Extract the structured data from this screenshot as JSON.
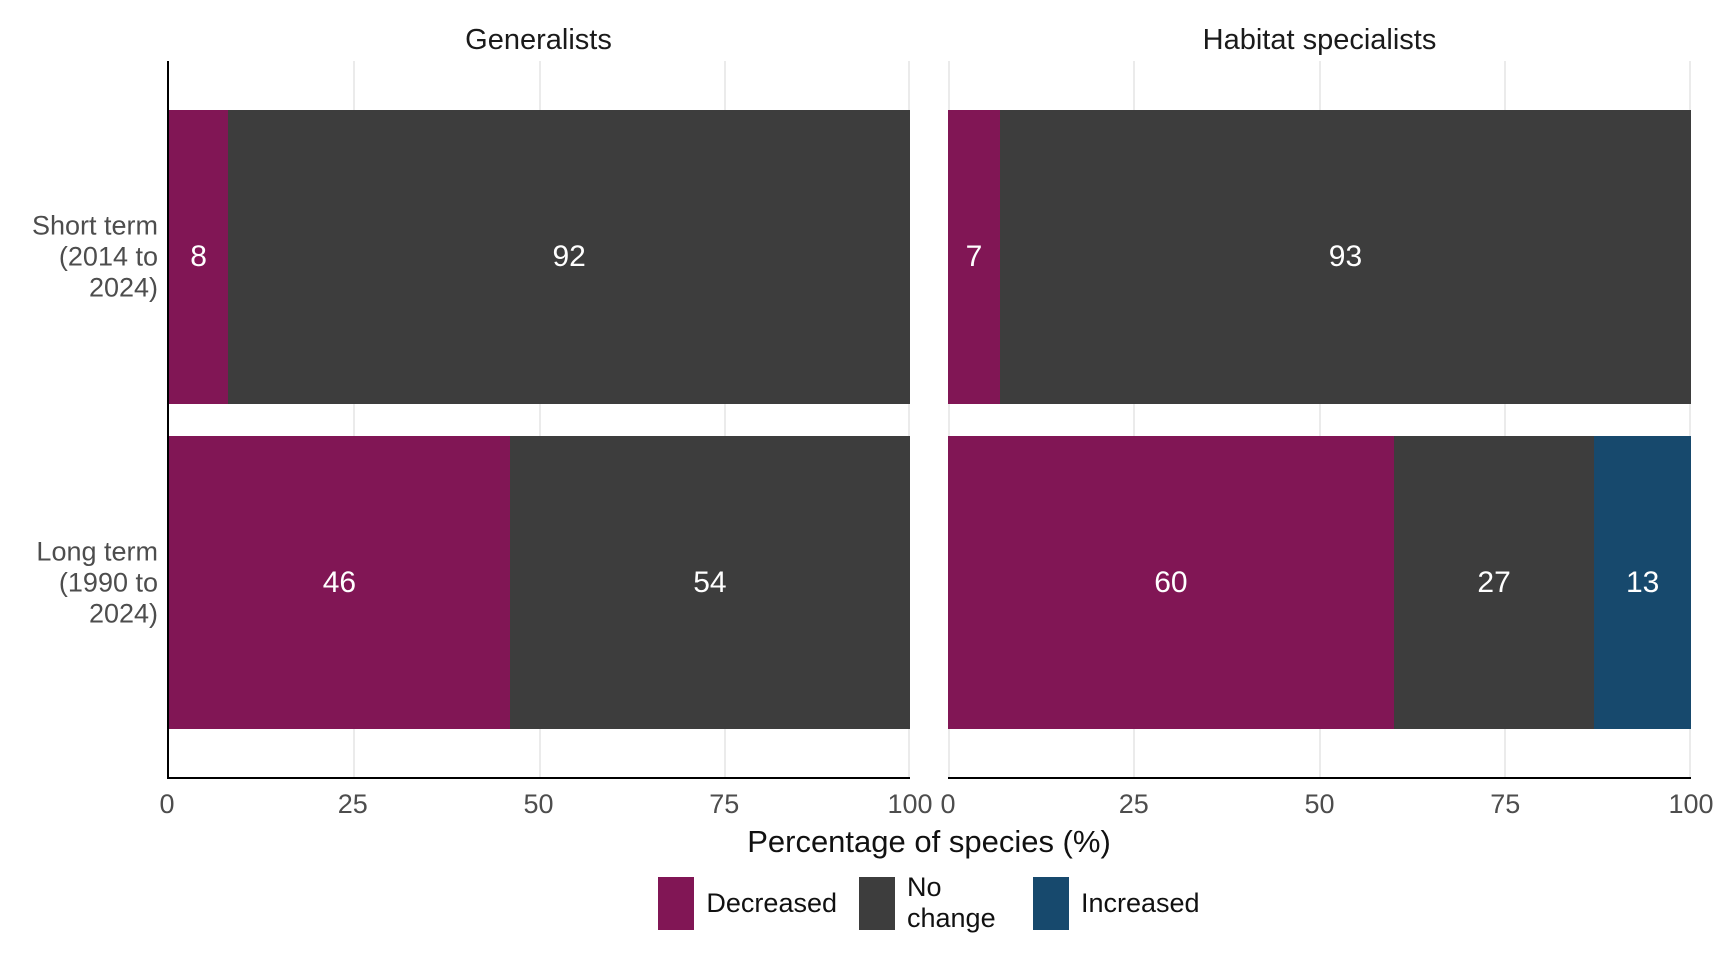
{
  "figure": {
    "background": "#ffffff"
  },
  "y_axis": {
    "categories": [
      {
        "name": "Short term (2014 to 2024)",
        "lines": [
          "Short term",
          "(2014 to",
          "2024)"
        ]
      },
      {
        "name": "Long term (1990 to 2024)",
        "lines": [
          "Long term",
          "(1990 to",
          "2024)"
        ]
      }
    ]
  },
  "chart_data": {
    "type": "bar",
    "orientation": "horizontal",
    "stacked": true,
    "unit": "percent of species",
    "xlabel": "Percentage of species (%)",
    "xlim": [
      0,
      100
    ],
    "x_ticks": [
      "0",
      "25",
      "50",
      "75",
      "100"
    ],
    "grid": "vertical major gridlines, light gray",
    "legend_position": "bottom-center",
    "series_colors": {
      "Decreased": "#811655",
      "No change": "#3d3d3d",
      "Increased": "#17496d"
    },
    "facets": [
      {
        "title": "Generalists",
        "rows": [
          {
            "category": "Short term (2014 to 2024)",
            "segments": [
              {
                "series": "Decreased",
                "value": 8
              },
              {
                "series": "No change",
                "value": 92
              }
            ]
          },
          {
            "category": "Long term (1990 to 2024)",
            "segments": [
              {
                "series": "Decreased",
                "value": 46
              },
              {
                "series": "No change",
                "value": 54
              }
            ]
          }
        ]
      },
      {
        "title": "Habitat specialists",
        "rows": [
          {
            "category": "Short term (2014 to 2024)",
            "segments": [
              {
                "series": "Decreased",
                "value": 7
              },
              {
                "series": "No change",
                "value": 93
              }
            ]
          },
          {
            "category": "Long term (1990 to 2024)",
            "segments": [
              {
                "series": "Decreased",
                "value": 60
              },
              {
                "series": "No change",
                "value": 27
              },
              {
                "series": "Increased",
                "value": 13
              }
            ]
          }
        ]
      }
    ],
    "legend": [
      {
        "label": "Decreased",
        "color": "#811655"
      },
      {
        "label": "No change",
        "color": "#3d3d3d"
      },
      {
        "label": "Increased",
        "color": "#17496d"
      }
    ]
  }
}
